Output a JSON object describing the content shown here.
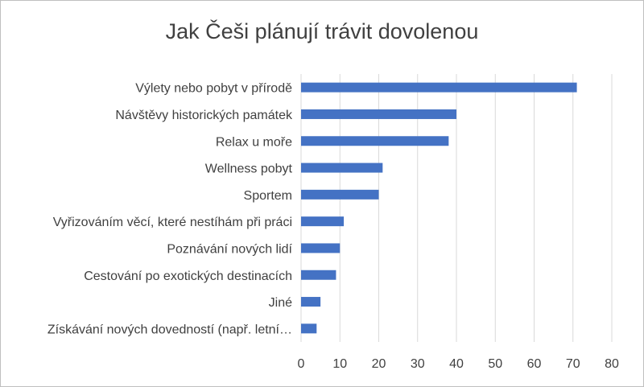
{
  "chart_data": {
    "type": "bar",
    "orientation": "horizontal",
    "title": "Jak Češi plánují trávit dovolenou",
    "xlabel": "",
    "ylabel": "",
    "categories": [
      "Výlety nebo pobyt v přírodě",
      "Návštěvy historických památek",
      "Relax u moře",
      "Wellness pobyt",
      "Sportem",
      "Vyřizováním věcí, které nestíhám při práci",
      "Poznávání nových lidí",
      "Cestování po exotických destinacích",
      "Jiné",
      "Získávání nových dovedností (např. letní…"
    ],
    "values": [
      71,
      40,
      38,
      21,
      20,
      11,
      10,
      9,
      5,
      4
    ],
    "xlim": [
      0,
      80
    ],
    "xticks": [
      0,
      10,
      20,
      30,
      40,
      50,
      60,
      70,
      80
    ],
    "grid": "vertical",
    "legend": "none",
    "bar_color": "#4472c4",
    "grid_color": "#d9d9d9"
  }
}
